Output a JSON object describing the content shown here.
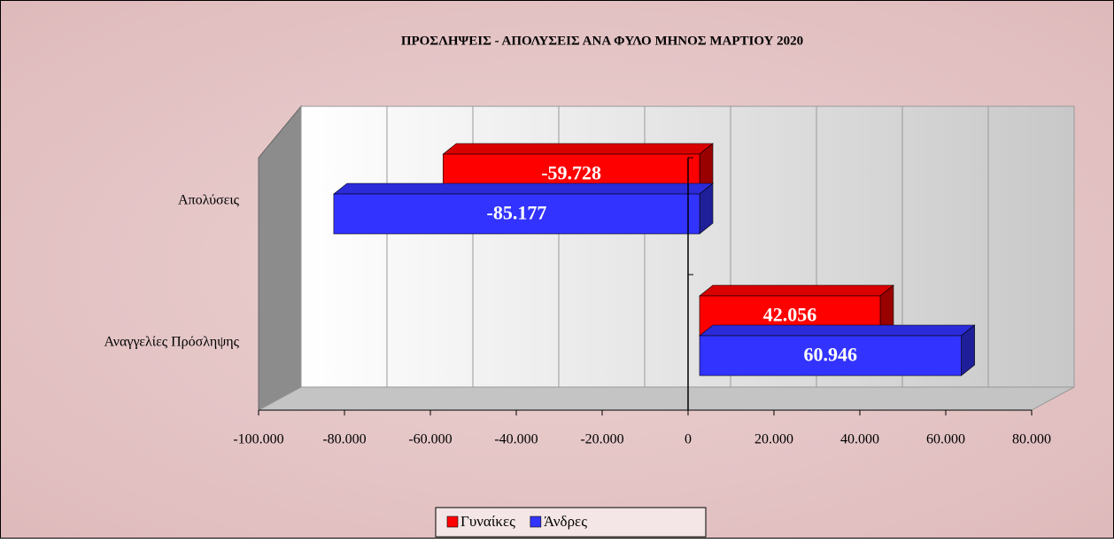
{
  "chart_data": {
    "type": "bar",
    "orientation": "horizontal",
    "title": "ΠΡΟΣΛΗΨΕΙΣ - ΑΠΟΛΥΣΕΙΣ ΑΝΑ ΦΥΛΟ ΜΗΝΟΣ  ΜΑΡΤΙΟΥ  2020",
    "categories": [
      "Απολύσεις",
      "Αναγγελίες Πρόσληψης"
    ],
    "series": [
      {
        "name": "Γυναίκες",
        "color": "#ff0000",
        "values": [
          -59728,
          42056
        ],
        "value_labels": [
          "-59.728",
          "42.056"
        ]
      },
      {
        "name": "Άνδρες",
        "color": "#3333ff",
        "values": [
          -85177,
          60946
        ],
        "value_labels": [
          "-85.177",
          "60.946"
        ]
      }
    ],
    "xlim": [
      -100000,
      80000
    ],
    "xticks": [
      {
        "value": -100000,
        "label": "-100.000"
      },
      {
        "value": -80000,
        "label": "-80.000"
      },
      {
        "value": -60000,
        "label": "-60.000"
      },
      {
        "value": -40000,
        "label": "-40.000"
      },
      {
        "value": -20000,
        "label": "-20.000"
      },
      0,
      {
        "value": 20000,
        "label": "20.000"
      },
      {
        "value": 40000,
        "label": "40.000"
      },
      {
        "value": 60000,
        "label": "60.000"
      },
      {
        "value": 80000,
        "label": "80.000"
      }
    ],
    "grid": true,
    "legend": "bottom"
  }
}
